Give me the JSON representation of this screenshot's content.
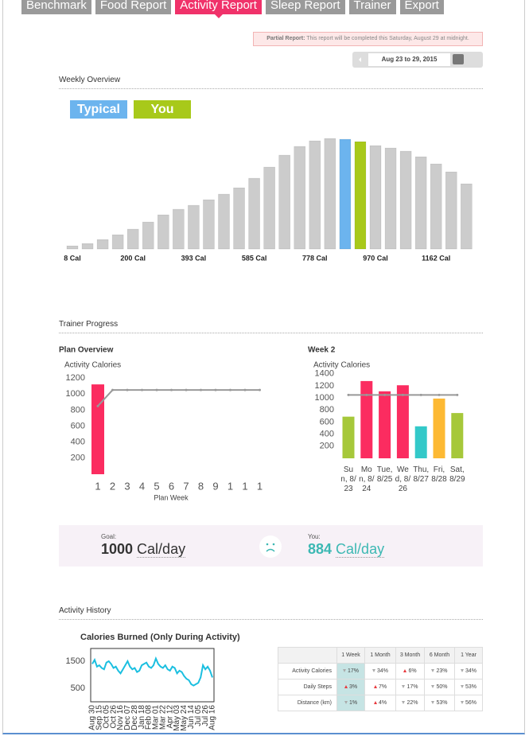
{
  "tabs": [
    "Benchmark",
    "Food Report",
    "Activity Report",
    "Sleep Report",
    "Trainer",
    "Export"
  ],
  "active_tab": 2,
  "notice": {
    "label": "Partial Report:",
    "text": "This report will be completed this Saturday, August 29 at midnight."
  },
  "date_range": "Aug 23 to 29, 2015",
  "sections": [
    "Weekly Overview",
    "Trainer Progress",
    "Activity History"
  ],
  "goal": {
    "label": "Goal:",
    "value": 1000,
    "unit": "Cal/day"
  },
  "you": {
    "label": "You:",
    "value": 884,
    "unit": "Cal/day"
  },
  "table": {
    "columns": [
      "1 Week",
      "1 Month",
      "3 Month",
      "6 Month",
      "1 Year"
    ],
    "rows": [
      {
        "label": "Activity Calories",
        "cells": [
          {
            "dir": "down",
            "value": "17%"
          },
          {
            "dir": "down",
            "value": "34%"
          },
          {
            "dir": "up",
            "value": "6%"
          },
          {
            "dir": "down",
            "value": "23%"
          },
          {
            "dir": "down",
            "value": "34%"
          }
        ]
      },
      {
        "label": "Daily Steps",
        "cells": [
          {
            "dir": "up",
            "value": "3%"
          },
          {
            "dir": "up",
            "value": "7%"
          },
          {
            "dir": "down",
            "value": "17%"
          },
          {
            "dir": "down",
            "value": "50%"
          },
          {
            "dir": "down",
            "value": "53%"
          }
        ]
      },
      {
        "label": "Distance (km)",
        "cells": [
          {
            "dir": "down",
            "value": "1%"
          },
          {
            "dir": "up",
            "value": "4%"
          },
          {
            "dir": "down",
            "value": "22%"
          },
          {
            "dir": "down",
            "value": "53%"
          },
          {
            "dir": "down",
            "value": "56%"
          }
        ]
      }
    ]
  },
  "chart_data": [
    {
      "type": "bar",
      "color": "#cccccc",
      "legend": [
        {
          "name": "Typical",
          "index": 18,
          "color": "#6cb4ee"
        },
        {
          "name": "You",
          "index": 19,
          "color": "#a8c91a"
        }
      ],
      "categories": [
        "8 Cal",
        null,
        null,
        null,
        "200 Cal",
        null,
        null,
        null,
        "393 Cal",
        null,
        null,
        null,
        "585 Cal",
        null,
        null,
        null,
        "778 Cal",
        null,
        null,
        null,
        "970 Cal",
        null,
        null,
        null,
        "1162 Cal",
        null,
        null
      ],
      "values": [
        4,
        7,
        12,
        18,
        25,
        34,
        43,
        50,
        55,
        62,
        69,
        77,
        89,
        103,
        118,
        129,
        136,
        139,
        138,
        135,
        130,
        127,
        123,
        116,
        107,
        97,
        82
      ]
    },
    {
      "type": "bar_line",
      "title": "Plan Overview",
      "ylabel": "Activity Calories",
      "xlabel": "Plan Week",
      "categories": [
        "1",
        "2",
        "3",
        "4",
        "5",
        "6",
        "7",
        "8",
        "9",
        "1",
        "1",
        "1"
      ],
      "ylim": [
        0,
        1250
      ],
      "yticks": [
        200,
        400,
        600,
        800,
        1000,
        1200
      ],
      "series": [
        {
          "type": "bar",
          "color": "#fb2c60",
          "values": [
            1120,
            null,
            null,
            null,
            null,
            null,
            null,
            null,
            null,
            null,
            null,
            null
          ]
        },
        {
          "type": "line",
          "color": "#999999",
          "values": [
            850,
            1050,
            1050,
            1050,
            1050,
            1050,
            1050,
            1050,
            1050,
            1050,
            1050,
            1050
          ]
        }
      ]
    },
    {
      "type": "bar_line",
      "title": "Week 2",
      "ylabel": "Activity Calories",
      "categories": [
        "Sun, 8/23",
        "Mon, 8/24",
        "Tue, 8/25",
        "Wed, 8/26",
        "Thu, 8/27",
        "Fri, 8/28",
        "Sat, 8/29"
      ],
      "ylim": [
        0,
        1450
      ],
      "yticks": [
        200,
        400,
        600,
        800,
        1000,
        1200,
        1400
      ],
      "series": [
        {
          "type": "bar",
          "colors": [
            "#a6c83a",
            "#fb2c60",
            "#fb2c60",
            "#fb2c60",
            "#33c9c9",
            "#fdb933",
            "#a6c83a"
          ],
          "values": [
            690,
            1280,
            1110,
            1210,
            530,
            990,
            750
          ]
        },
        {
          "type": "line",
          "color": "#999999",
          "values": [
            1050,
            1050,
            1050,
            1050,
            1050,
            1050,
            1050
          ]
        }
      ]
    },
    {
      "type": "line",
      "title": "Calories Burned (Only During Activity)",
      "color": "#1bbfe0",
      "ylim": [
        0,
        2000
      ],
      "yticks": [
        500,
        1500
      ],
      "categories": [
        "Aug 30",
        null,
        null,
        "Sep 15",
        null,
        null,
        "Oct 05",
        null,
        null,
        "Oct 26",
        null,
        null,
        "Nov 16",
        null,
        null,
        "Dec 07",
        null,
        null,
        "Dec 28",
        null,
        null,
        "Jan 18",
        null,
        null,
        "Feb 08",
        null,
        null,
        "Mar 01",
        null,
        null,
        "Mar 22",
        null,
        null,
        "Apr 12",
        null,
        null,
        "May 03",
        null,
        null,
        "May 24",
        null,
        null,
        "Jun 14",
        null,
        null,
        "Jul 05",
        null,
        null,
        "Jul 26",
        null,
        null,
        "Aug 16"
      ],
      "values": [
        1400,
        1550,
        1300,
        1350,
        1250,
        1200,
        1450,
        1500,
        1400,
        1250,
        1300,
        1150,
        1050,
        1200,
        1350,
        1500,
        1300,
        1200,
        1250,
        1100,
        1150,
        1350,
        1400,
        1450,
        1300,
        1250,
        1350,
        1600,
        1400,
        1300,
        1250,
        1350,
        1200,
        1150,
        1300,
        1250,
        1050,
        1150,
        1100,
        950,
        850,
        800,
        650,
        600,
        650,
        700,
        900,
        1350,
        1200,
        1300,
        1150,
        900
      ]
    }
  ]
}
